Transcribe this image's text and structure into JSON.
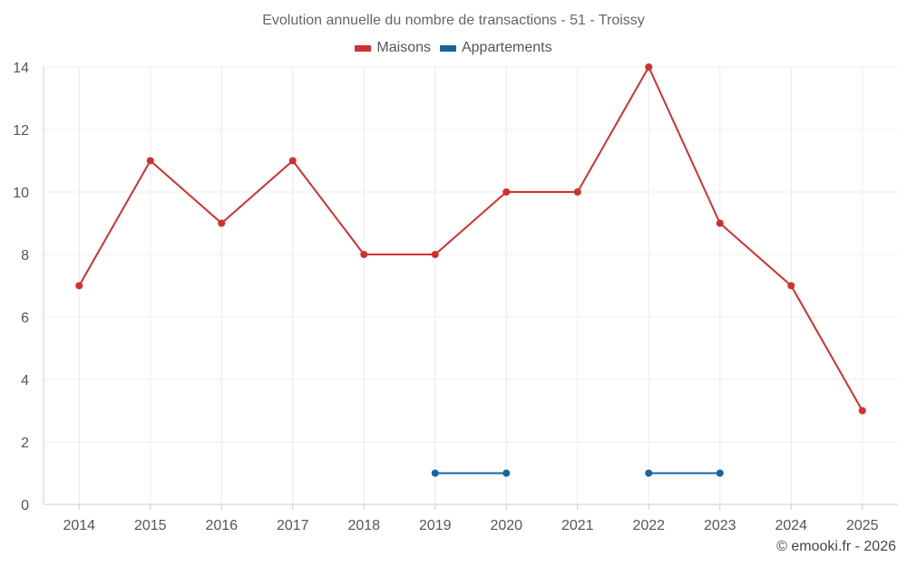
{
  "chart_data": {
    "type": "line",
    "title": "Evolution annuelle du nombre de transactions - 51 - Troissy",
    "categories": [
      "2014",
      "2015",
      "2016",
      "2017",
      "2018",
      "2019",
      "2020",
      "2021",
      "2022",
      "2023",
      "2024",
      "2025"
    ],
    "series": [
      {
        "name": "Maisons",
        "color": "#d32f2f",
        "values": [
          7,
          11,
          9,
          11,
          8,
          8,
          10,
          10,
          14,
          9,
          7,
          3
        ]
      },
      {
        "name": "Appartements",
        "color": "#1565a0",
        "values": [
          null,
          null,
          null,
          null,
          null,
          1,
          1,
          null,
          1,
          1,
          null,
          null
        ]
      }
    ],
    "ylim": [
      0,
      14
    ],
    "yticks": [
      0,
      2,
      4,
      6,
      8,
      10,
      12,
      14
    ],
    "grid": true,
    "legend_position": "top-center"
  },
  "footer": {
    "credit": "© emooki.fr - 2026"
  }
}
